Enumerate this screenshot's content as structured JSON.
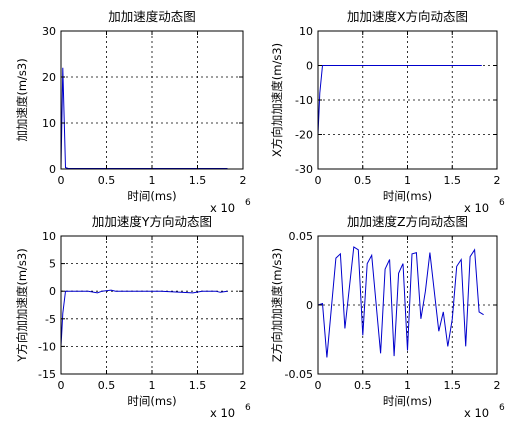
{
  "figure": {
    "background": "#ffffff",
    "line_color": "#0000cc"
  },
  "chart_data": [
    {
      "type": "line",
      "title": "加加速度动态图",
      "xlabel": "时间(ms)",
      "ylabel": "加加速度(m/s3)",
      "x_multiplier": "x 10",
      "x_exponent": "6",
      "xlim": [
        0,
        2
      ],
      "ylim": [
        0,
        30
      ],
      "xticks": [
        0,
        0.5,
        1,
        1.5,
        2
      ],
      "xticklabels": [
        "0",
        "0.5",
        "1",
        "1.5",
        "2"
      ],
      "yticks": [
        0,
        10,
        20,
        30
      ],
      "yticklabels": [
        "0",
        "10",
        "20",
        "30"
      ],
      "grid": true,
      "series": [
        {
          "x": [
            0,
            0.02,
            0.05,
            0.08,
            0.3,
            0.6,
            1.0,
            1.4,
            1.6,
            1.83
          ],
          "y": [
            0,
            22,
            0.3,
            0.1,
            0.1,
            0.1,
            0.1,
            0.1,
            0.1,
            0.1
          ]
        }
      ]
    },
    {
      "type": "line",
      "title": "加加速度X方向动态图",
      "xlabel": "时间(ms)",
      "ylabel": "X方向加加速度(m/s3)",
      "x_multiplier": "x 10",
      "x_exponent": "6",
      "xlim": [
        0,
        2
      ],
      "ylim": [
        -30,
        10
      ],
      "xticks": [
        0,
        0.5,
        1,
        1.5,
        2
      ],
      "xticklabels": [
        "0",
        "0.5",
        "1",
        "1.5",
        "2"
      ],
      "yticks": [
        -30,
        -20,
        -10,
        0,
        10
      ],
      "yticklabels": [
        "-30",
        "-20",
        "-10",
        "0",
        "10"
      ],
      "grid": true,
      "series": [
        {
          "x": [
            0,
            0.02,
            0.05,
            0.3,
            0.6,
            1.0,
            1.4,
            1.83
          ],
          "y": [
            -20,
            -8,
            0,
            0,
            0,
            0,
            0,
            0
          ]
        }
      ]
    },
    {
      "type": "line",
      "title": "加加速度Y方向动态图",
      "xlabel": "时间(ms)",
      "ylabel": "Y方向加加速度(m/s3)",
      "x_multiplier": "x 10",
      "x_exponent": "6",
      "xlim": [
        0,
        2
      ],
      "ylim": [
        -15,
        10
      ],
      "xticks": [
        0,
        0.5,
        1,
        1.5,
        2
      ],
      "xticklabels": [
        "0",
        "0.5",
        "1",
        "1.5",
        "2"
      ],
      "yticks": [
        -15,
        -10,
        -5,
        0,
        5,
        10
      ],
      "yticklabels": [
        "-15",
        "-10",
        "-5",
        "0",
        "5",
        "10"
      ],
      "grid": true,
      "series": [
        {
          "x": [
            0,
            0.02,
            0.05,
            0.3,
            0.4,
            0.45,
            0.55,
            0.6,
            1.0,
            1.1,
            1.45,
            1.55,
            1.6,
            1.7,
            1.75,
            1.83
          ],
          "y": [
            -10,
            -4,
            0,
            0,
            -0.3,
            0,
            0.2,
            0,
            0,
            0,
            -0.3,
            0,
            0,
            0,
            -0.2,
            0
          ]
        }
      ]
    },
    {
      "type": "line",
      "title": "加加速度Z方向动态图",
      "xlabel": "时间(ms)",
      "ylabel": "Z方向加加速度(m/s3)",
      "x_multiplier": "x 10",
      "x_exponent": "6",
      "xlim": [
        0,
        2
      ],
      "ylim": [
        -0.05,
        0.05
      ],
      "xticks": [
        0,
        0.5,
        1,
        1.5,
        2
      ],
      "xticklabels": [
        "0",
        "0.5",
        "1",
        "1.5",
        "2"
      ],
      "yticks": [
        -0.05,
        0,
        0.05
      ],
      "yticklabels": [
        "-0.05",
        "0",
        "0.05"
      ],
      "grid": true,
      "series": [
        {
          "x": [
            0,
            0.05,
            0.1,
            0.2,
            0.25,
            0.3,
            0.4,
            0.45,
            0.5,
            0.55,
            0.6,
            0.7,
            0.75,
            0.8,
            0.85,
            0.9,
            0.95,
            1.0,
            1.05,
            1.1,
            1.15,
            1.2,
            1.25,
            1.35,
            1.4,
            1.45,
            1.5,
            1.55,
            1.6,
            1.65,
            1.7,
            1.75,
            1.8,
            1.85
          ],
          "y": [
            0,
            0.001,
            -0.038,
            0.034,
            0.037,
            -0.017,
            0.042,
            0.04,
            -0.022,
            0.03,
            0.036,
            -0.035,
            0.026,
            0.033,
            -0.037,
            0.023,
            0.03,
            -0.033,
            0.037,
            0.038,
            -0.01,
            0.01,
            0.038,
            -0.019,
            -0.005,
            -0.03,
            -0.01,
            0.028,
            0.033,
            -0.03,
            0.035,
            0.04,
            -0.005,
            -0.007
          ]
        }
      ]
    }
  ]
}
